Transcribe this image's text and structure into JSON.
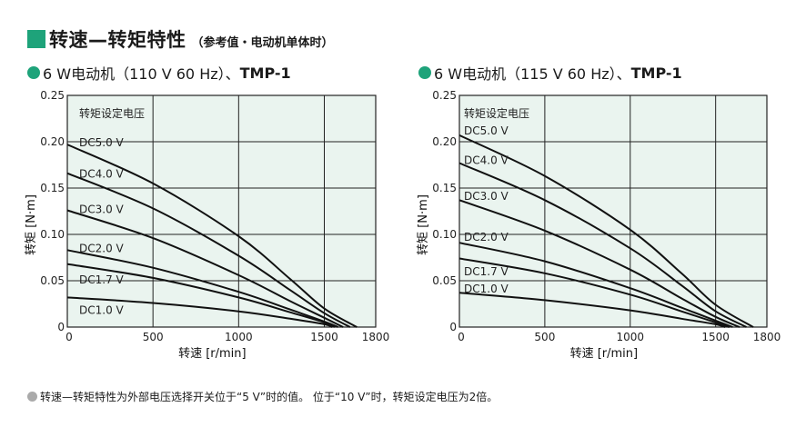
{
  "header": {
    "title": "转速—转矩特性",
    "subtitle": "（参考值・电动机单体时）"
  },
  "footnote": "转速—转矩特性为外部电压选择开关位于“5 V”时的值。 位于“10 V”时，转矩设定电压为2倍。",
  "colors": {
    "accent": "#1ea37a",
    "plot_bg": "#eaf4ef"
  },
  "chart_data": [
    {
      "type": "line",
      "title_prefix": "6 W电动机（110 V 60 Hz）、",
      "title_model": "TMP-1",
      "xlabel": "转速 [r/min]",
      "ylabel": "转矩 [N·m]",
      "xlim": [
        0,
        1800
      ],
      "ylim": [
        0,
        0.25
      ],
      "xticks": [
        "0",
        "500",
        "1000",
        "1500",
        "1800"
      ],
      "yticks": [
        "0",
        "0.05",
        "0.10",
        "0.15",
        "0.20",
        "0.25"
      ],
      "legend_title": "转矩设定电压",
      "grid": true,
      "series": [
        {
          "name": "DC5.0 V",
          "label_y": 0.199,
          "points": [
            [
              0,
              0.197
            ],
            [
              500,
              0.155
            ],
            [
              1000,
              0.098
            ],
            [
              1300,
              0.052
            ],
            [
              1500,
              0.02
            ],
            [
              1690,
              0
            ]
          ]
        },
        {
          "name": "DC4.0 V",
          "label_y": 0.165,
          "points": [
            [
              0,
              0.166
            ],
            [
              500,
              0.128
            ],
            [
              1000,
              0.077
            ],
            [
              1300,
              0.04
            ],
            [
              1500,
              0.015
            ],
            [
              1650,
              0
            ]
          ]
        },
        {
          "name": "DC3.0 V",
          "label_y": 0.127,
          "points": [
            [
              0,
              0.126
            ],
            [
              500,
              0.096
            ],
            [
              1000,
              0.056
            ],
            [
              1300,
              0.028
            ],
            [
              1500,
              0.01
            ],
            [
              1610,
              0
            ]
          ]
        },
        {
          "name": "DC2.0 V",
          "label_y": 0.085,
          "points": [
            [
              0,
              0.083
            ],
            [
              500,
              0.064
            ],
            [
              1000,
              0.038
            ],
            [
              1300,
              0.019
            ],
            [
              1500,
              0.006
            ],
            [
              1580,
              0
            ]
          ]
        },
        {
          "name": "DC1.7 V",
          "label_y": 0.051,
          "points": [
            [
              0,
              0.068
            ],
            [
              500,
              0.053
            ],
            [
              1000,
              0.032
            ],
            [
              1300,
              0.016
            ],
            [
              1500,
              0.005
            ],
            [
              1560,
              0
            ]
          ]
        },
        {
          "name": "DC1.0 V",
          "label_y": 0.018,
          "points": [
            [
              0,
              0.032
            ],
            [
              500,
              0.026
            ],
            [
              1000,
              0.017
            ],
            [
              1300,
              0.009
            ],
            [
              1500,
              0.003
            ],
            [
              1545,
              0
            ]
          ]
        }
      ]
    },
    {
      "type": "line",
      "title_prefix": "6 W电动机（115 V 60 Hz）、",
      "title_model": "TMP-1",
      "xlabel": "转速 [r/min]",
      "ylabel": "转矩 [N·m]",
      "xlim": [
        0,
        1800
      ],
      "ylim": [
        0,
        0.25
      ],
      "xticks": [
        "0",
        "500",
        "1000",
        "1500",
        "1800"
      ],
      "yticks": [
        "0",
        "0.05",
        "0.10",
        "0.15",
        "0.20",
        "0.25"
      ],
      "legend_title": "转矩设定电压",
      "grid": true,
      "series": [
        {
          "name": "DC5.0 V",
          "label_y": 0.212,
          "points": [
            [
              0,
              0.207
            ],
            [
              500,
              0.163
            ],
            [
              1000,
              0.105
            ],
            [
              1300,
              0.058
            ],
            [
              1500,
              0.024
            ],
            [
              1720,
              0
            ]
          ]
        },
        {
          "name": "DC4.0 V",
          "label_y": 0.18,
          "points": [
            [
              0,
              0.177
            ],
            [
              500,
              0.137
            ],
            [
              1000,
              0.085
            ],
            [
              1300,
              0.045
            ],
            [
              1500,
              0.017
            ],
            [
              1680,
              0
            ]
          ]
        },
        {
          "name": "DC3.0 V",
          "label_y": 0.141,
          "points": [
            [
              0,
              0.137
            ],
            [
              500,
              0.104
            ],
            [
              1000,
              0.062
            ],
            [
              1300,
              0.031
            ],
            [
              1500,
              0.011
            ],
            [
              1640,
              0
            ]
          ]
        },
        {
          "name": "DC2.0 V",
          "label_y": 0.097,
          "points": [
            [
              0,
              0.091
            ],
            [
              500,
              0.071
            ],
            [
              1000,
              0.042
            ],
            [
              1300,
              0.021
            ],
            [
              1500,
              0.007
            ],
            [
              1600,
              0
            ]
          ]
        },
        {
          "name": "DC1.7 V",
          "label_y": 0.06,
          "points": [
            [
              0,
              0.074
            ],
            [
              500,
              0.058
            ],
            [
              1000,
              0.035
            ],
            [
              1300,
              0.017
            ],
            [
              1500,
              0.005
            ],
            [
              1580,
              0
            ]
          ]
        },
        {
          "name": "DC1.0 V",
          "label_y": 0.041,
          "points": [
            [
              0,
              0.037
            ],
            [
              500,
              0.029
            ],
            [
              1000,
              0.018
            ],
            [
              1300,
              0.009
            ],
            [
              1500,
              0.003
            ],
            [
              1555,
              0
            ]
          ]
        }
      ]
    }
  ]
}
